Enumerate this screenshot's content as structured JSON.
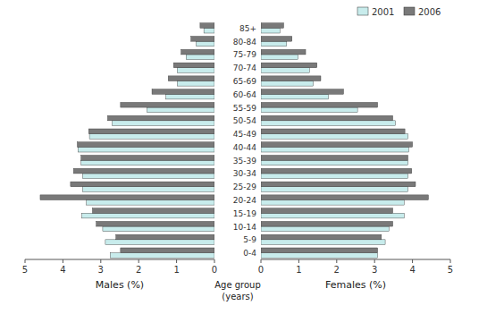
{
  "chart_data": [
    {
      "type": "bar",
      "orientation": "horizontal",
      "xlabel": "Males (%)",
      "categories": [
        "0-4",
        "5-9",
        "10-14",
        "15-19",
        "20-24",
        "25-29",
        "30-34",
        "35-39",
        "40-44",
        "45-49",
        "50-54",
        "55-59",
        "60-64",
        "65-69",
        "70-74",
        "75-79",
        "80-84",
        "85+"
      ],
      "series": [
        {
          "color": "#c8ecec",
          "values": [
            2.75,
            2.88,
            2.95,
            3.5,
            3.38,
            3.48,
            3.48,
            3.52,
            3.6,
            3.3,
            2.7,
            1.78,
            1.28,
            0.98,
            0.98,
            0.75,
            0.48,
            0.28
          ]
        },
        {
          "color": "#797979",
          "values": [
            2.48,
            2.6,
            3.12,
            3.22,
            4.6,
            3.8,
            3.72,
            3.52,
            3.62,
            3.32,
            2.82,
            2.48,
            1.65,
            1.22,
            1.08,
            0.88,
            0.62,
            0.38
          ]
        }
      ],
      "xlim": [
        5,
        0
      ],
      "xticks": [
        0,
        1,
        2,
        3,
        4,
        5
      ],
      "tick_labels": "x",
      "grid": false
    },
    {
      "type": "bar",
      "orientation": "horizontal",
      "xlabel": "Females (%)",
      "ylabel": "Age group\n(years)",
      "categories": [
        "0-4",
        "5-9",
        "10-14",
        "15-19",
        "20-24",
        "25-29",
        "30-34",
        "35-39",
        "40-44",
        "45-49",
        "50-54",
        "55-59",
        "60-64",
        "65-69",
        "70-74",
        "75-79",
        "80-84",
        "85+"
      ],
      "series": [
        {
          "name": "2001",
          "color": "#c8ecec",
          "values": [
            3.08,
            3.28,
            3.38,
            3.78,
            3.78,
            3.88,
            3.88,
            3.88,
            3.9,
            3.88,
            3.55,
            2.55,
            1.78,
            1.38,
            1.28,
            0.98,
            0.68,
            0.5
          ]
        },
        {
          "name": "2006",
          "color": "#797979",
          "values": [
            3.08,
            3.18,
            3.48,
            3.48,
            4.42,
            4.08,
            3.98,
            3.88,
            4.0,
            3.8,
            3.48,
            3.08,
            2.18,
            1.58,
            1.48,
            1.18,
            0.82,
            0.6
          ]
        }
      ],
      "xlim": [
        0,
        5
      ],
      "xticks": [
        0,
        1,
        2,
        3,
        4,
        5
      ],
      "legend": "upper right",
      "grid": false
    }
  ]
}
